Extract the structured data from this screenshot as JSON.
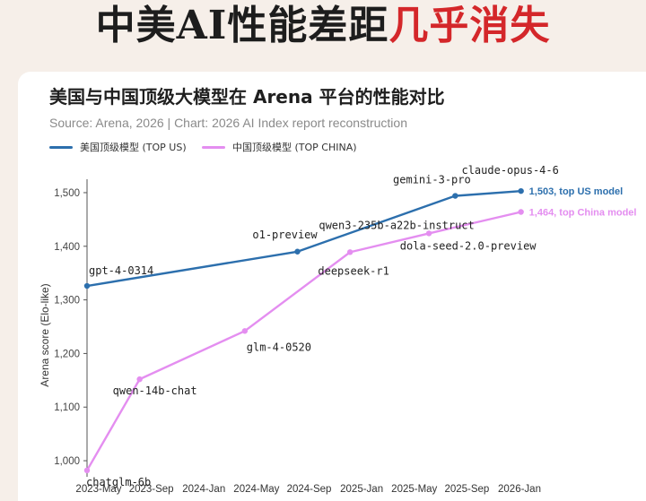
{
  "headline": {
    "part1": "中美AI性能差距",
    "part2": "几乎消失"
  },
  "colors": {
    "accent": "#d4272a",
    "us": "#2c6fad",
    "china": "#e48ef0"
  },
  "chart_data": {
    "type": "line",
    "title": "美国与中国顶级大模型在 Arena 平台的性能对比",
    "subtitle": "Source: Arena, 2026 | Chart: 2026 AI Index report reconstruction",
    "ylabel": "Arena score (Elo-like)",
    "ylim": [
      970,
      1525
    ],
    "yticks": [
      1000,
      1100,
      1200,
      1300,
      1400,
      1500
    ],
    "ytick_labels": [
      "1,000",
      "1,100",
      "1,200",
      "1,300",
      "1,400",
      "1,500"
    ],
    "xticks": [
      "2023-May",
      "2023-Sep",
      "2024-Jan",
      "2024-May",
      "2024-Sep",
      "2025-Jan",
      "2025-May",
      "2025-Sep",
      "2026-Jan"
    ],
    "xlim": [
      "2023-05",
      "2026-03"
    ],
    "legend_position": "top-left",
    "series": [
      {
        "name": "美国顶级模型 (TOP US)",
        "color": "#2c6fad",
        "points": [
          {
            "x": "2023-05",
            "y": 1326,
            "label": "gpt-4-0314"
          },
          {
            "x": "2024-09",
            "y": 1390,
            "label": "o1-preview"
          },
          {
            "x": "2025-09",
            "y": 1494,
            "label": "gemini-3-pro"
          },
          {
            "x": "2026-02",
            "y": 1503,
            "label": "claude-opus-4-6"
          }
        ],
        "end_label": "1,503, top US model"
      },
      {
        "name": "中国顶级模型 (TOP CHINA)",
        "color": "#e48ef0",
        "points": [
          {
            "x": "2023-05",
            "y": 982,
            "label": "chatglm-6b"
          },
          {
            "x": "2023-09",
            "y": 1152,
            "label": "qwen-14b-chat"
          },
          {
            "x": "2024-05",
            "y": 1242,
            "label": "glm-4-0520"
          },
          {
            "x": "2025-01",
            "y": 1389,
            "label": "deepseek-r1"
          },
          {
            "x": "2025-07",
            "y": 1424,
            "label": "qwen3-235b-a22b-instruct"
          },
          {
            "x": "2026-02",
            "y": 1464,
            "label": "dola-seed-2.0-preview"
          }
        ],
        "end_label": "1,464, top China model"
      }
    ]
  }
}
